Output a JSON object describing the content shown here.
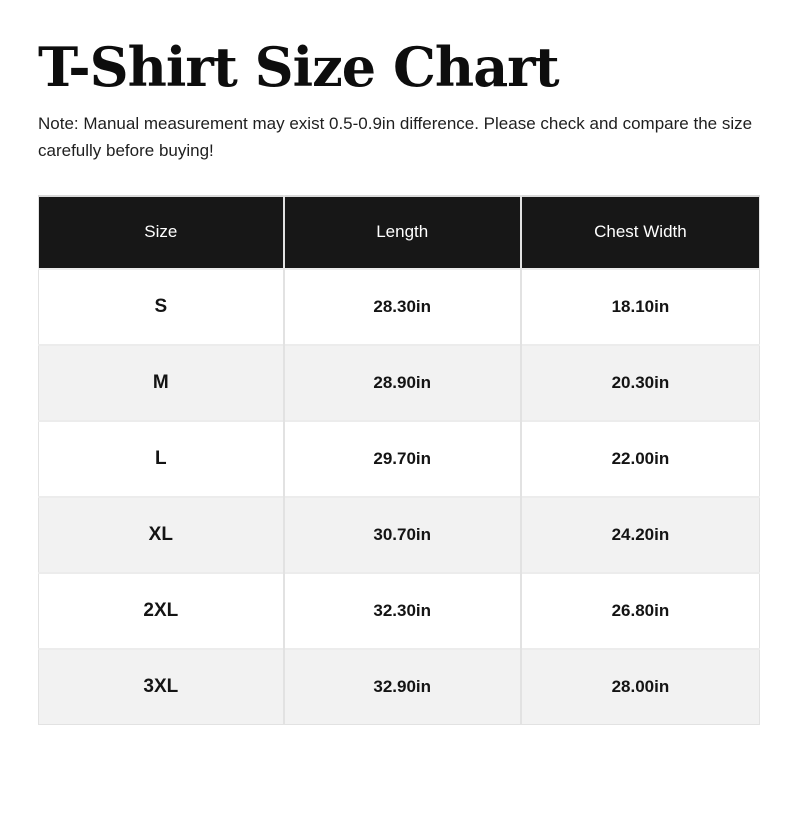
{
  "page": {
    "title": "T-Shirt Size Chart",
    "note": "Note: Manual measurement may exist 0.5-0.9in difference. Please check and compare the size carefully before buying!"
  },
  "chart_data": {
    "type": "table",
    "title": "T-Shirt Size Chart",
    "columns": [
      "Size",
      "Length",
      "Chest Width"
    ],
    "rows": [
      [
        "S",
        "28.30in",
        "18.10in"
      ],
      [
        "M",
        "28.90in",
        "20.30in"
      ],
      [
        "L",
        "29.70in",
        "22.00in"
      ],
      [
        "XL",
        "30.70in",
        "24.20in"
      ],
      [
        "2XL",
        "32.30in",
        "26.80in"
      ],
      [
        "3XL",
        "32.90in",
        "28.00in"
      ]
    ],
    "units": "in",
    "layout_hints": {
      "header_style": "dark",
      "alternating_rows": true
    }
  },
  "colors": {
    "header_bg": "#171717",
    "header_text": "#ffffff",
    "row_alt_bg": "#f2f2f2",
    "row_bg": "#ffffff",
    "border": "#e2e2e2",
    "text": "#111111"
  }
}
